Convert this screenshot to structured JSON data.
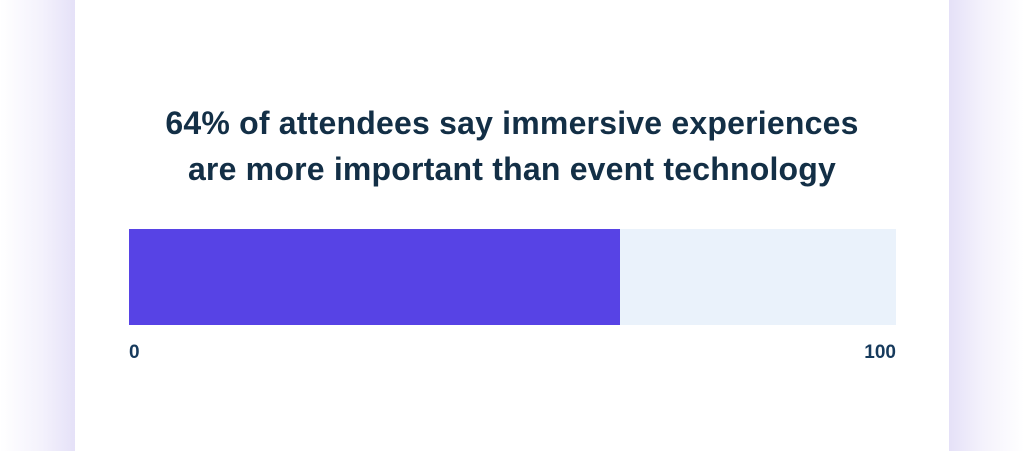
{
  "chart_data": {
    "type": "bar",
    "orientation": "horizontal",
    "title": "64% of attendees say immersive experiences are more important than event technology",
    "title_line1": "64% of attendees say immersive experiences",
    "title_line2": "are more important than event technology",
    "series": [
      {
        "name": "attendees who say immersive experiences are more important",
        "value": 64
      }
    ],
    "value": 64,
    "xlim": [
      0,
      100
    ],
    "axis_min_label": "0",
    "axis_max_label": "100",
    "grid": false,
    "legend": false,
    "colors": {
      "bar_fill": "#5743e5",
      "bar_track": "#eaf2fb",
      "title_text": "#132f46",
      "tick_text": "#163a5c",
      "card_background": "#ffffff",
      "side_glow": "#e5e1f8"
    }
  }
}
